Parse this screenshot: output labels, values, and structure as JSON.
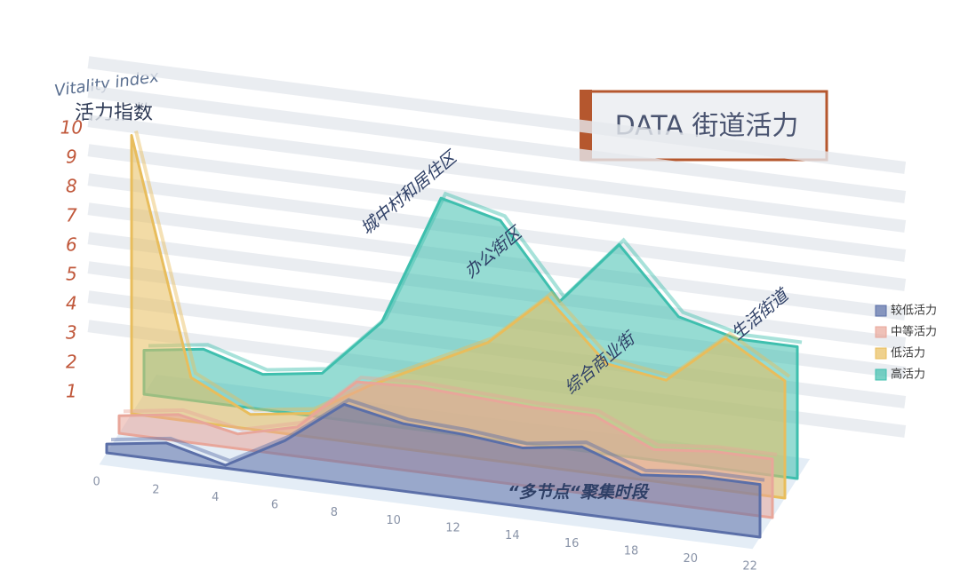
{
  "chart_data": {
    "type": "area3d",
    "title": "DATA 街道活力",
    "y_label_en": "Vitality index",
    "y_label": "活力指数",
    "x": [
      0,
      2,
      4,
      6,
      8,
      10,
      12,
      14,
      16,
      18,
      20,
      22
    ],
    "xlim": [
      0,
      22
    ],
    "xticks": [
      0,
      2,
      4,
      6,
      8,
      10,
      12,
      14,
      16,
      18,
      20,
      22
    ],
    "ylim": [
      0,
      10
    ],
    "yticks": [
      1,
      2,
      3,
      4,
      5,
      6,
      7,
      8,
      9,
      10
    ],
    "grid": true,
    "legend": "right",
    "series": [
      {
        "name": "较低活力",
        "color": "#5b6fa8",
        "values": [
          0.3,
          0.6,
          0.1,
          1.2,
          2.7,
          2.3,
          2.2,
          2.0,
          2.3,
          1.6,
          1.8,
          1.8
        ]
      },
      {
        "name": "中等活力",
        "color": "#e8a69a",
        "values": [
          0.6,
          0.9,
          0.5,
          1.0,
          2.8,
          2.9,
          2.8,
          2.7,
          2.7,
          1.8,
          2.0,
          2.0
        ]
      },
      {
        "name": "低活力",
        "color": "#e8bd5c",
        "values": [
          9.5,
          1.5,
          0.5,
          0.8,
          2.0,
          3.0,
          4.0,
          5.8,
          3.8,
          3.5,
          5.2,
          4.0
        ]
      },
      {
        "name": "高活力",
        "color": "#3fbfae",
        "values": [
          1.5,
          1.8,
          1.2,
          1.5,
          3.5,
          8.0,
          7.5,
          5.0,
          7.2,
          5.0,
          4.5,
          4.5
        ]
      }
    ],
    "annotations": [
      "城中村和居住区",
      "办公街区",
      "综合商业街",
      "生活街道",
      "“多节点“聚集时段"
    ]
  }
}
